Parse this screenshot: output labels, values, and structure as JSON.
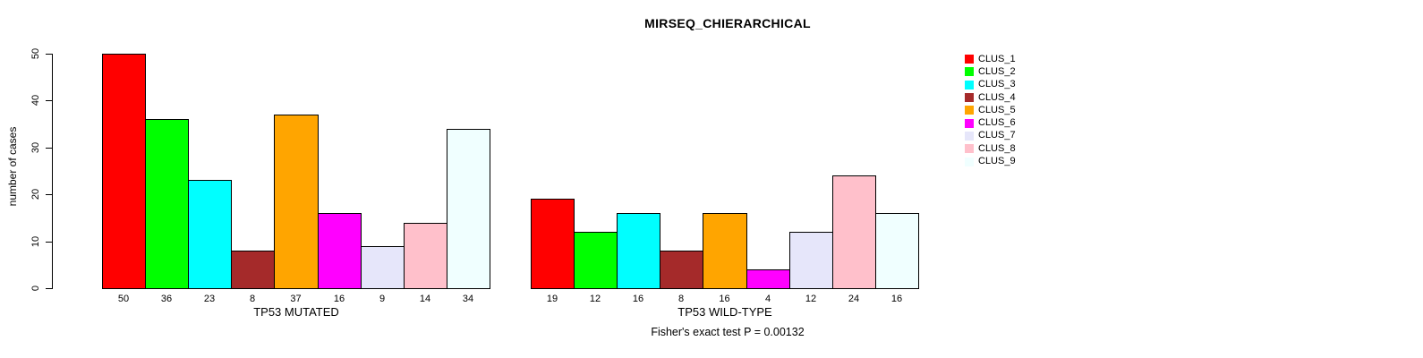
{
  "figure": {
    "title": "MIRSEQ_CHIERARCHICAL",
    "footnote": "Fisher's exact test P = 0.00132"
  },
  "chart_data": {
    "type": "bar",
    "title": "MIRSEQ_CHIERARCHICAL",
    "ylabel": "number of cases",
    "ylim": [
      0,
      50
    ],
    "yticks": [
      0,
      10,
      20,
      30,
      40,
      50
    ],
    "grid": false,
    "categories": [
      "CLUS_1",
      "CLUS_2",
      "CLUS_3",
      "CLUS_4",
      "CLUS_5",
      "CLUS_6",
      "CLUS_7",
      "CLUS_8",
      "CLUS_9"
    ],
    "colors": [
      "#FF0000",
      "#00FF00",
      "#00FFFF",
      "#A52A2A",
      "#FFA500",
      "#FF00FF",
      "#E6E6FA",
      "#FFC0CB",
      "#F0FFFF"
    ],
    "series": [
      {
        "name": "TP53 MUTATED",
        "values": [
          50,
          36,
          23,
          8,
          37,
          16,
          9,
          14,
          34
        ]
      },
      {
        "name": "TP53 WILD-TYPE",
        "values": [
          19,
          12,
          16,
          8,
          16,
          4,
          12,
          24,
          16
        ]
      }
    ],
    "bar_value_labels": true,
    "legend": {
      "position": "top-right",
      "entries": [
        "CLUS_1",
        "CLUS_2",
        "CLUS_3",
        "CLUS_4",
        "CLUS_5",
        "CLUS_6",
        "CLUS_7",
        "CLUS_8",
        "CLUS_9"
      ]
    },
    "annotation": "Fisher's exact test P = 0.00132"
  }
}
